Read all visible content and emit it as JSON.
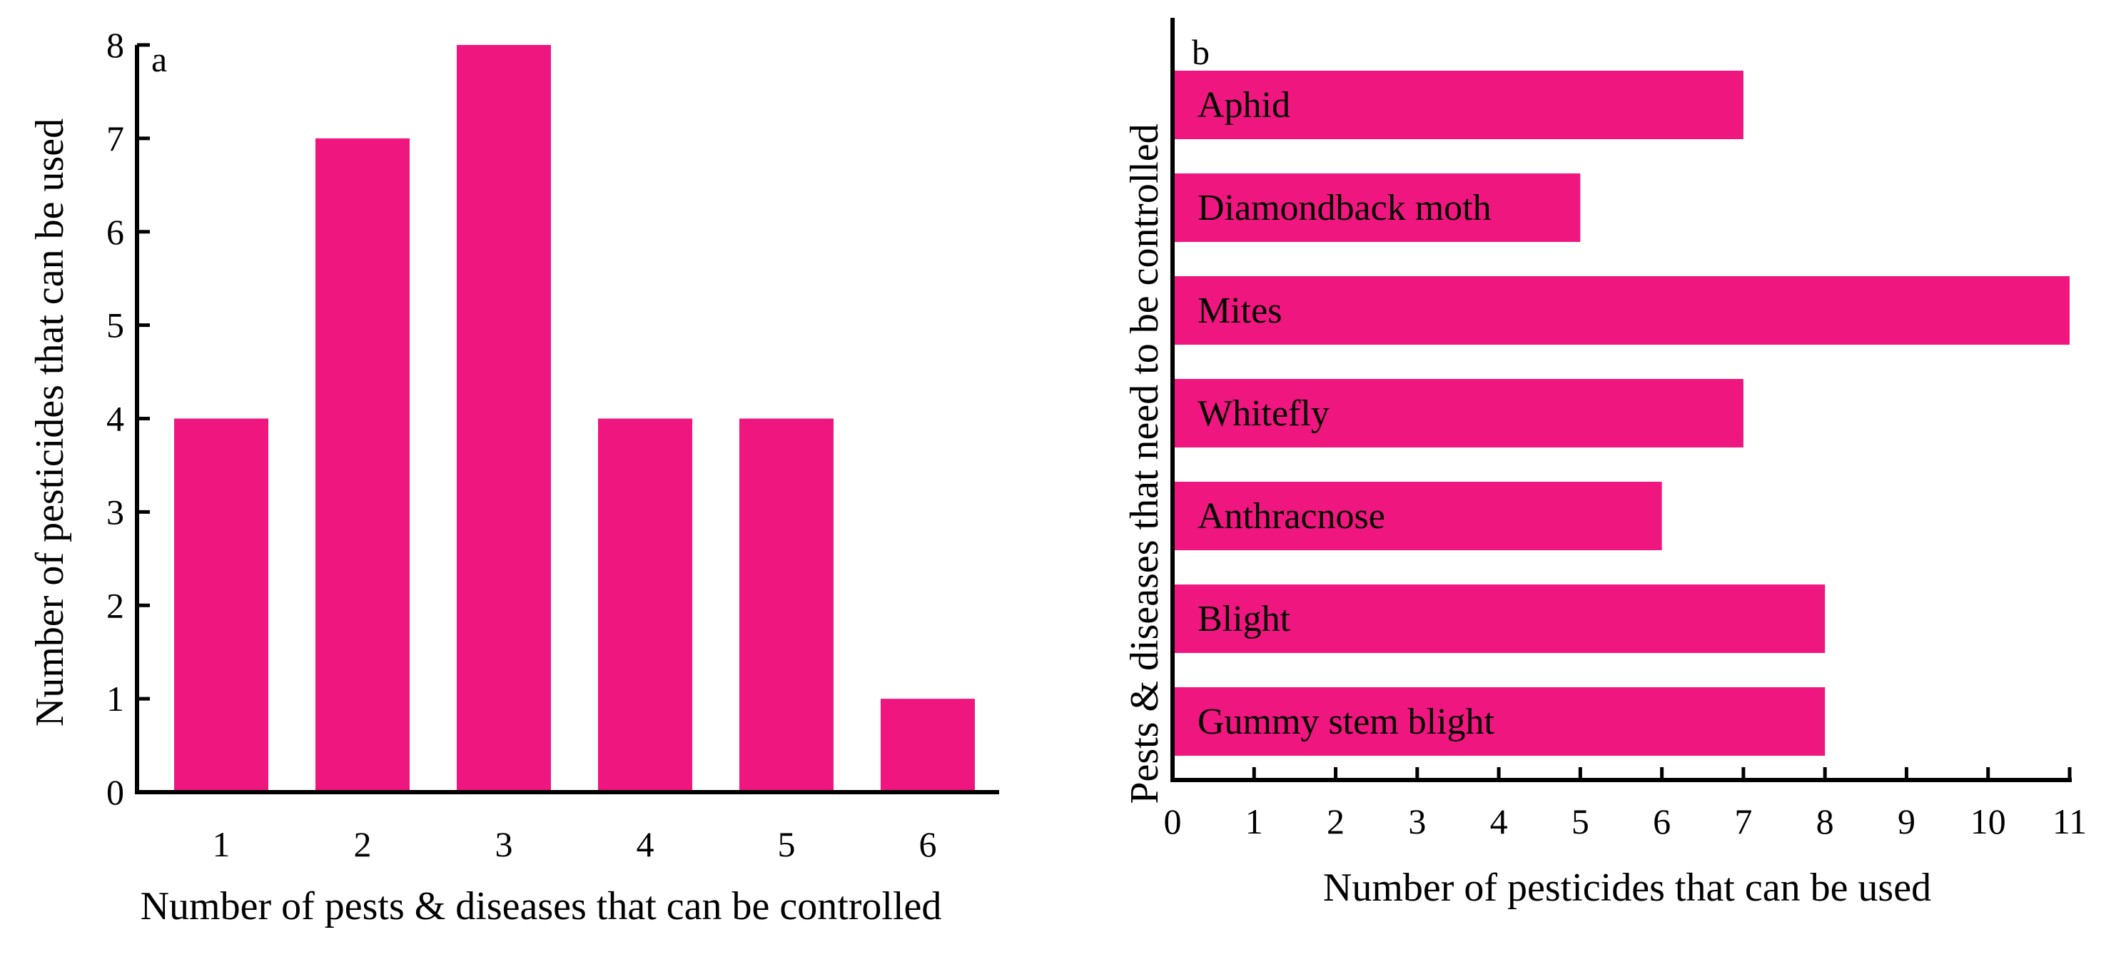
{
  "chart_data": [
    {
      "type": "bar",
      "panel": "a",
      "categories": [
        "1",
        "2",
        "3",
        "4",
        "5",
        "6"
      ],
      "values": [
        4,
        7,
        8,
        4,
        4,
        1
      ],
      "xlabel": "Number of pests & diseases that can be controlled",
      "ylabel": "Number of pesticides that can be used",
      "yticks": [
        "0",
        "1",
        "2",
        "3",
        "4",
        "5",
        "6",
        "7",
        "8"
      ],
      "ylim": [
        0,
        8
      ],
      "grid": false,
      "bar_color": "#F0167F"
    },
    {
      "type": "bar",
      "orientation": "horizontal",
      "panel": "b",
      "categories": [
        "Aphid",
        "Diamondback moth",
        "Mites",
        "Whitefly",
        "Anthracnose",
        "Blight",
        "Gummy stem blight"
      ],
      "values": [
        7,
        5,
        11,
        7,
        6,
        8,
        8
      ],
      "xlabel": "Number of pesticides that can be used",
      "ylabel": "Pests & diseases that need to be controlled",
      "xticks": [
        "0",
        "1",
        "2",
        "3",
        "4",
        "5",
        "6",
        "7",
        "8",
        "9",
        "10",
        "11"
      ],
      "xlim": [
        0,
        11
      ],
      "grid": false,
      "bar_color": "#F0167F"
    }
  ]
}
